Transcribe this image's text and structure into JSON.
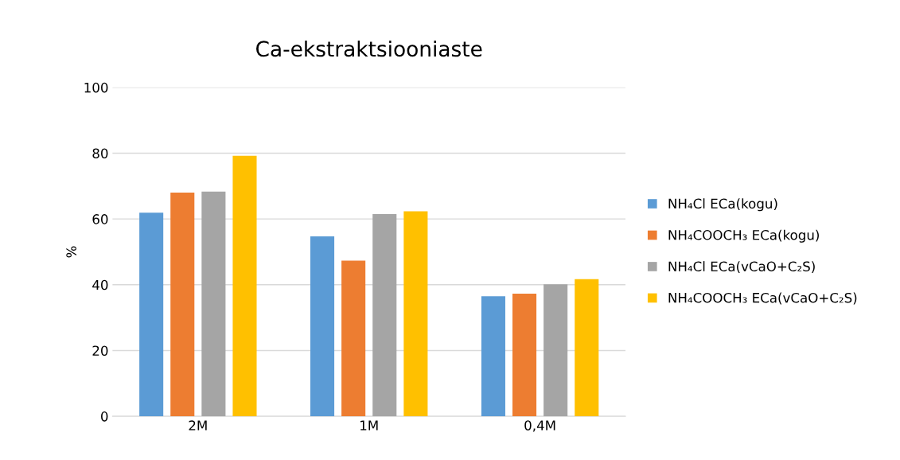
{
  "chart_data": {
    "type": "bar",
    "title": "Ca-ekstraktsiooniaste",
    "ylabel": "%",
    "categories": [
      "2M",
      "1M",
      "0,4M"
    ],
    "series": [
      {
        "name": "NH₄Cl ECa(kogu)",
        "color": "#5b9bd5",
        "values": [
          61.9,
          54.7,
          36.5
        ]
      },
      {
        "name": "NH₄COOCH₃ ECa(kogu)",
        "color": "#ed7d31",
        "values": [
          68.0,
          47.3,
          37.3
        ]
      },
      {
        "name": "NH₄Cl ECa(vCaO+C₂S)",
        "color": "#a5a5a5",
        "values": [
          68.3,
          61.5,
          40.1
        ]
      },
      {
        "name": "NH₄COOCH₃ ECa(vCaO+C₂S)",
        "color": "#ffc000",
        "values": [
          79.2,
          62.3,
          41.7
        ]
      }
    ],
    "ylim": [
      0,
      100
    ],
    "yticks": [
      0,
      20,
      40,
      60,
      80,
      100
    ],
    "grid": "y",
    "legend": "right"
  }
}
